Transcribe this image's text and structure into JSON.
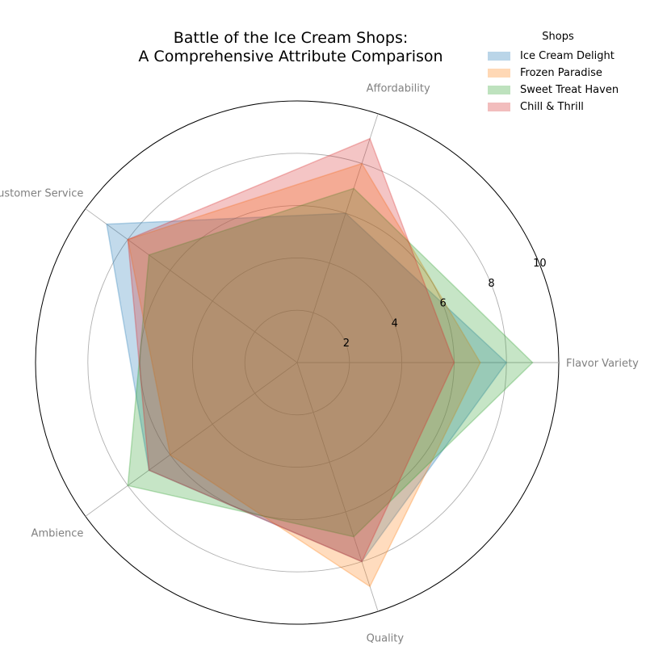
{
  "chart_data": {
    "type": "radar",
    "title": "Battle of the Ice Cream Shops:\nA Comprehensive Attribute Comparison",
    "axes": [
      "Flavor Variety",
      "Affordability",
      "Customer Service",
      "Ambience",
      "Quality"
    ],
    "rlim": [
      0,
      10
    ],
    "r_ticks": [
      2,
      4,
      6,
      8,
      10
    ],
    "legend_title": "Shops",
    "legend_position": "top-right",
    "grid": true,
    "series": [
      {
        "name": "Ice Cream Delight",
        "values": [
          8,
          6,
          9,
          7,
          8
        ],
        "color": "#1f77b4"
      },
      {
        "name": "Frozen Paradise",
        "values": [
          7,
          8,
          8,
          6,
          9
        ],
        "color": "#ff7f0e"
      },
      {
        "name": "Sweet Treat Haven",
        "values": [
          9,
          7,
          7,
          8,
          7
        ],
        "color": "#2ca02c"
      },
      {
        "name": "Chill & Thrill",
        "values": [
          6,
          9,
          8,
          7,
          8
        ],
        "color": "#d62728"
      }
    ]
  }
}
